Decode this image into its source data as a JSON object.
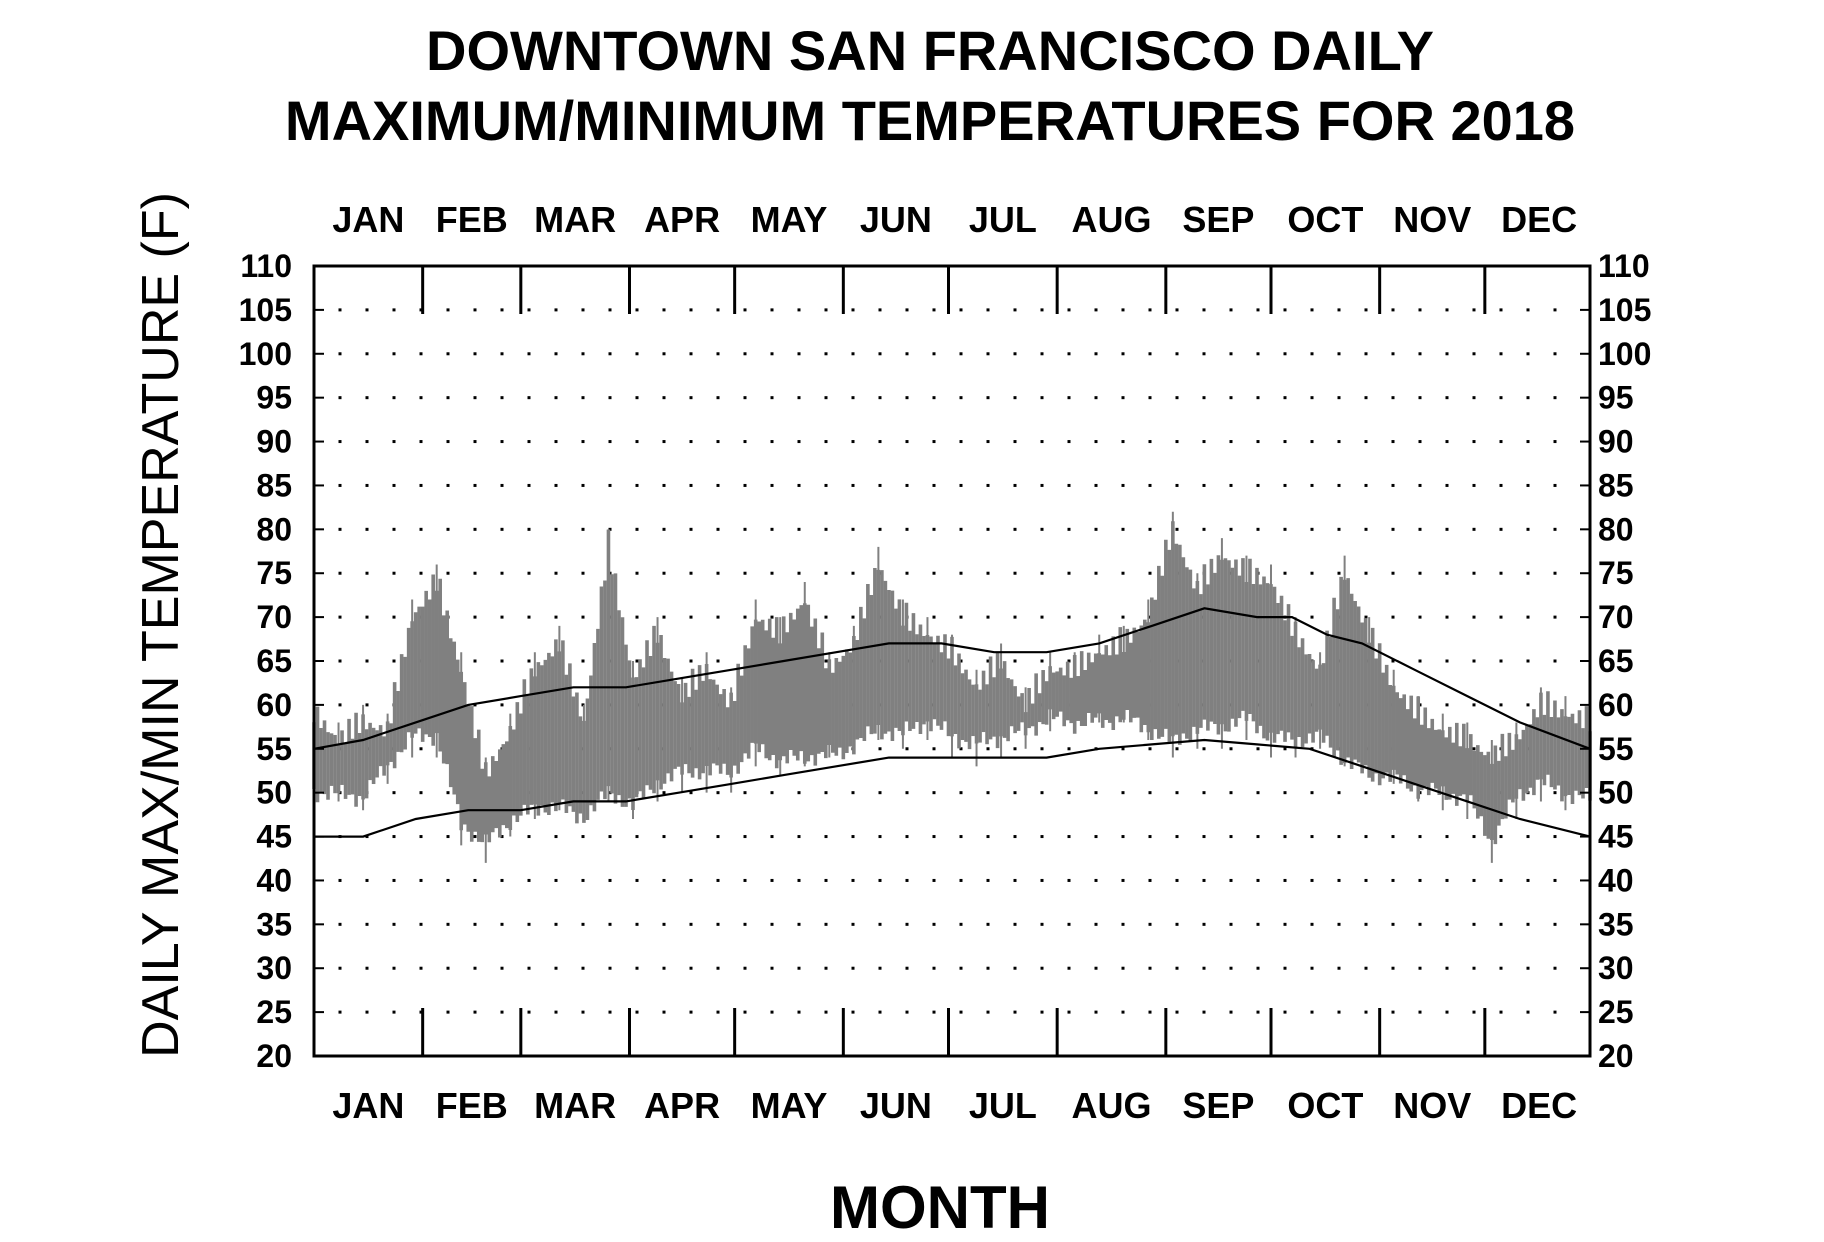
{
  "chart_data": {
    "type": "line",
    "title_lines": [
      "DOWNTOWN SAN FRANCISCO DAILY",
      "MAXIMUM/MINIMUM TEMPERATURES FOR 2018"
    ],
    "xlabel": "MONTH",
    "ylabel": "DAILY MAX/MIN TEMPERATURE (F)",
    "ylim": [
      20,
      110
    ],
    "yticks": [
      20,
      25,
      30,
      35,
      40,
      45,
      50,
      55,
      60,
      65,
      70,
      75,
      80,
      85,
      90,
      95,
      100,
      105,
      110
    ],
    "xlim": [
      1,
      365
    ],
    "months": [
      "JAN",
      "FEB",
      "MAR",
      "APR",
      "MAY",
      "JUN",
      "JUL",
      "AUG",
      "SEP",
      "OCT",
      "NOV",
      "DEC"
    ],
    "month_start_days": [
      1,
      32,
      60,
      91,
      121,
      152,
      182,
      213,
      244,
      274,
      305,
      335
    ],
    "grid": "dotted",
    "colors": {
      "daily_range": "#808080",
      "normals": "#000000",
      "grid": "#000000"
    },
    "series": [
      {
        "kind": "daily-range",
        "x": [
          1,
          8,
          15,
          22,
          29,
          36,
          43,
          50,
          57,
          64,
          71,
          78,
          85,
          92,
          99,
          106,
          113,
          120,
          127,
          134,
          141,
          148,
          155,
          162,
          169,
          176,
          183,
          190,
          197,
          204,
          211,
          218,
          225,
          232,
          239,
          246,
          253,
          260,
          267,
          274,
          281,
          288,
          295,
          302,
          309,
          316,
          323,
          330,
          337,
          344,
          351,
          358,
          365
        ],
        "max": [
          61,
          58,
          60,
          59,
          72,
          76,
          66,
          54,
          59,
          66,
          69,
          60,
          80,
          65,
          70,
          63,
          66,
          62,
          72,
          70,
          74,
          66,
          69,
          78,
          72,
          70,
          68,
          64,
          67,
          62,
          66,
          66,
          68,
          69,
          72,
          82,
          75,
          79,
          77,
          76,
          70,
          66,
          77,
          70,
          64,
          61,
          59,
          58,
          56,
          58,
          62,
          61,
          60
        ],
        "min": [
          50,
          49,
          48,
          51,
          54,
          54,
          44,
          42,
          45,
          47,
          48,
          47,
          49,
          47,
          49,
          50,
          50,
          50,
          53,
          52,
          53,
          54,
          55,
          56,
          55,
          56,
          54,
          53,
          54,
          55,
          57,
          57,
          58,
          58,
          56,
          54,
          55,
          55,
          56,
          54,
          54,
          55,
          53,
          52,
          51,
          49,
          48,
          47,
          42,
          47,
          49,
          48,
          48
        ]
      },
      {
        "kind": "normal-max",
        "x": [
          1,
          15,
          30,
          45,
          60,
          75,
          90,
          105,
          120,
          135,
          150,
          165,
          180,
          195,
          210,
          225,
          240,
          255,
          270,
          280,
          290,
          300,
          315,
          330,
          345,
          365
        ],
        "values": [
          55,
          56,
          58,
          60,
          61,
          62,
          62,
          63,
          64,
          65,
          66,
          67,
          67,
          66,
          66,
          67,
          69,
          71,
          70,
          70,
          68,
          67,
          64,
          61,
          58,
          55
        ]
      },
      {
        "kind": "normal-min",
        "x": [
          1,
          15,
          30,
          45,
          60,
          75,
          90,
          105,
          120,
          135,
          150,
          165,
          180,
          195,
          210,
          225,
          240,
          255,
          270,
          285,
          300,
          315,
          330,
          345,
          365
        ],
        "values": [
          45,
          45,
          47,
          48,
          48,
          49,
          49,
          50,
          51,
          52,
          53,
          54,
          54,
          54,
          54,
          55,
          55.5,
          56,
          55.5,
          55,
          53,
          51,
          49,
          47,
          45
        ]
      }
    ]
  }
}
